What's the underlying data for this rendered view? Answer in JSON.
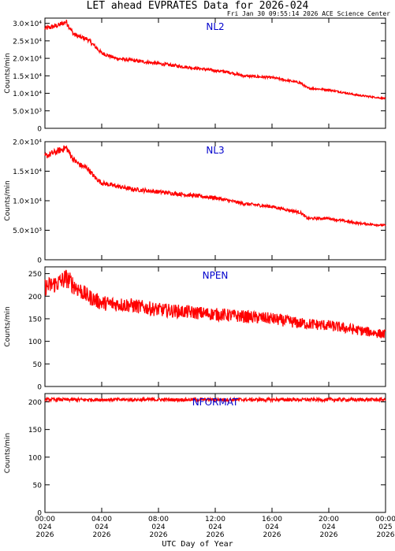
{
  "title": "LET ahead EVPRATES Data for 2026-024",
  "timestamp": "Fri Jan 30 09:55:14 2026 ACE Science Center",
  "colors": {
    "line": "#ff0000",
    "label": "#0000cc",
    "axis": "#000000"
  },
  "chart_data": [
    {
      "type": "line",
      "title": "NL2",
      "ylabel": "Counts/min",
      "ylim": [
        0,
        31500
      ],
      "yticks": [
        0,
        5000,
        10000,
        15000,
        20000,
        25000,
        30000
      ],
      "yticklabels": [
        "0",
        "5.0×10³",
        "1.0×10⁴",
        "1.5×10⁴",
        "2.0×10⁴",
        "2.5×10⁴",
        "3.0×10⁴"
      ],
      "x": [
        0,
        0.5,
        1.0,
        1.5,
        2,
        2.5,
        3,
        3.5,
        4,
        5,
        6,
        8,
        10,
        12,
        13,
        14,
        16,
        18,
        18.5,
        20,
        22,
        24
      ],
      "values": [
        28500,
        29000,
        29500,
        30500,
        27000,
        26000,
        25500,
        23500,
        21500,
        20000,
        19500,
        18500,
        17500,
        16500,
        16000,
        15000,
        14500,
        13000,
        11500,
        11000,
        9500,
        8500
      ],
      "noise": 0.025
    },
    {
      "type": "line",
      "title": "NL3",
      "ylabel": "Counts/min",
      "ylim": [
        0,
        20000
      ],
      "yticks": [
        0,
        5000,
        10000,
        15000,
        20000
      ],
      "yticklabels": [
        "0",
        "5.0×10³",
        "1.0×10⁴",
        "1.5×10⁴",
        "2.0×10⁴"
      ],
      "x": [
        0,
        0.5,
        1.0,
        1.5,
        2,
        2.5,
        3,
        3.5,
        4,
        5,
        6,
        8,
        10,
        12,
        13,
        14,
        16,
        18,
        18.5,
        20,
        22,
        24
      ],
      "values": [
        17500,
        18000,
        18500,
        19000,
        17000,
        16000,
        15500,
        14000,
        13000,
        12500,
        12000,
        11500,
        11000,
        10500,
        10000,
        9500,
        9000,
        8000,
        7000,
        7000,
        6200,
        5800
      ],
      "noise": 0.03
    },
    {
      "type": "line",
      "title": "NPEN",
      "ylabel": "Counts/min",
      "ylim": [
        0,
        265
      ],
      "yticks": [
        0,
        50,
        100,
        150,
        200,
        250
      ],
      "yticklabels": [
        "0",
        "50",
        "100",
        "150",
        "200",
        "250"
      ],
      "x": [
        0,
        0.5,
        1.0,
        1.5,
        2,
        3,
        4,
        6,
        8,
        10,
        12,
        14,
        16,
        18,
        20,
        22,
        24
      ],
      "values": [
        220,
        225,
        230,
        240,
        225,
        200,
        185,
        180,
        170,
        165,
        160,
        155,
        150,
        140,
        135,
        125,
        115
      ],
      "noise": 0.09
    },
    {
      "type": "line",
      "title": "NFORMAT",
      "ylabel": "Counts/min",
      "ylim": [
        0,
        215
      ],
      "yticks": [
        0,
        50,
        100,
        150,
        200
      ],
      "yticklabels": [
        "0",
        "50",
        "100",
        "150",
        "200"
      ],
      "x": [
        0,
        24
      ],
      "values": [
        204,
        204
      ],
      "noise": 0.015
    }
  ],
  "xaxis": {
    "label": "UTC Day of Year",
    "range": [
      0,
      24
    ],
    "ticks": [
      {
        "x": 0,
        "time": "00:00",
        "doy": "024",
        "year": "2026"
      },
      {
        "x": 4,
        "time": "04:00",
        "doy": "024",
        "year": "2026"
      },
      {
        "x": 8,
        "time": "08:00",
        "doy": "024",
        "year": "2026"
      },
      {
        "x": 12,
        "time": "12:00",
        "doy": "024",
        "year": "2026"
      },
      {
        "x": 16,
        "time": "16:00",
        "doy": "024",
        "year": "2026"
      },
      {
        "x": 20,
        "time": "20:00",
        "doy": "024",
        "year": "2026"
      },
      {
        "x": 24,
        "time": "00:00",
        "doy": "025",
        "year": "2026"
      }
    ]
  }
}
